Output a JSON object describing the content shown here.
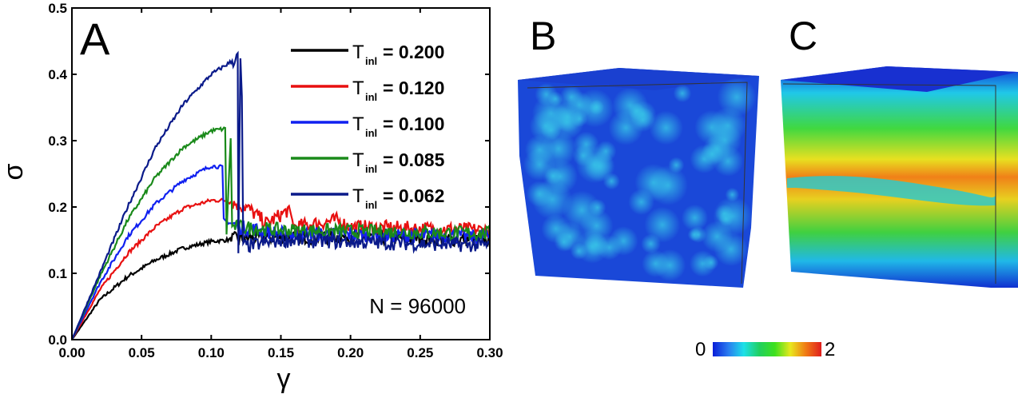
{
  "panels": {
    "a": "A",
    "b": "B",
    "c": "C"
  },
  "annotation": "N = 96000",
  "colorbar": {
    "min_label": "0",
    "max_label": "2",
    "colors": [
      "#0a1ed8",
      "#2a7cf0",
      "#1de0e8",
      "#20d060",
      "#3ee01e",
      "#e8e81e",
      "#f07a14",
      "#e01e1e"
    ]
  },
  "chart_data": {
    "type": "line",
    "title": "",
    "xlabel": "γ",
    "ylabel": "σ",
    "xlim": [
      0,
      0.3
    ],
    "ylim": [
      0,
      0.5
    ],
    "xticks": [
      "0.00",
      "0.05",
      "0.10",
      "0.15",
      "0.20",
      "0.25",
      "0.30"
    ],
    "yticks": [
      "0.0",
      "0.1",
      "0.2",
      "0.3",
      "0.4",
      "0.5"
    ],
    "legend_position": "top-right",
    "series": [
      {
        "name": "T_inl = 0.200",
        "label_main": "T",
        "label_sub": "inl",
        "label_value": "= 0.200",
        "color": "#000000",
        "x": [
          0,
          0.02,
          0.04,
          0.06,
          0.08,
          0.1,
          0.12,
          0.15,
          0.2,
          0.3
        ],
        "y": [
          0,
          0.06,
          0.095,
          0.12,
          0.138,
          0.148,
          0.152,
          0.155,
          0.155,
          0.15
        ]
      },
      {
        "name": "T_inl = 0.120",
        "label_main": "T",
        "label_sub": "inl",
        "label_value": "= 0.120",
        "color": "#e81010",
        "x": [
          0,
          0.02,
          0.04,
          0.06,
          0.08,
          0.1,
          0.11,
          0.125,
          0.14,
          0.155,
          0.16,
          0.19,
          0.2,
          0.3
        ],
        "y": [
          0,
          0.075,
          0.13,
          0.17,
          0.198,
          0.21,
          0.21,
          0.2,
          0.175,
          0.195,
          0.17,
          0.18,
          0.17,
          0.165
        ]
      },
      {
        "name": "T_inl = 0.100",
        "label_main": "T",
        "label_sub": "inl",
        "label_value": "= 0.100",
        "color": "#1020f0",
        "x": [
          0,
          0.02,
          0.04,
          0.06,
          0.08,
          0.1,
          0.108,
          0.109,
          0.12,
          0.15,
          0.3
        ],
        "y": [
          0,
          0.085,
          0.155,
          0.205,
          0.24,
          0.262,
          0.26,
          0.18,
          0.17,
          0.16,
          0.155
        ]
      },
      {
        "name": "T_inl = 0.085",
        "label_main": "T",
        "label_sub": "inl",
        "label_value": "= 0.085",
        "color": "#1a8a1a",
        "x": [
          0,
          0.02,
          0.04,
          0.06,
          0.08,
          0.1,
          0.11,
          0.111,
          0.114,
          0.115,
          0.118,
          0.15,
          0.3
        ],
        "y": [
          0,
          0.095,
          0.18,
          0.245,
          0.29,
          0.315,
          0.318,
          0.16,
          0.305,
          0.17,
          0.17,
          0.165,
          0.16
        ]
      },
      {
        "name": "T_inl = 0.062",
        "label_main": "T",
        "label_sub": "inl",
        "label_value": "= 0.062",
        "color": "#0a1a8a",
        "x": [
          0,
          0.02,
          0.04,
          0.06,
          0.08,
          0.1,
          0.115,
          0.119,
          0.1195,
          0.121,
          0.122,
          0.123,
          0.15,
          0.3
        ],
        "y": [
          0,
          0.1,
          0.2,
          0.29,
          0.355,
          0.4,
          0.42,
          0.425,
          0.13,
          0.42,
          0.37,
          0.14,
          0.15,
          0.142
        ]
      }
    ]
  }
}
